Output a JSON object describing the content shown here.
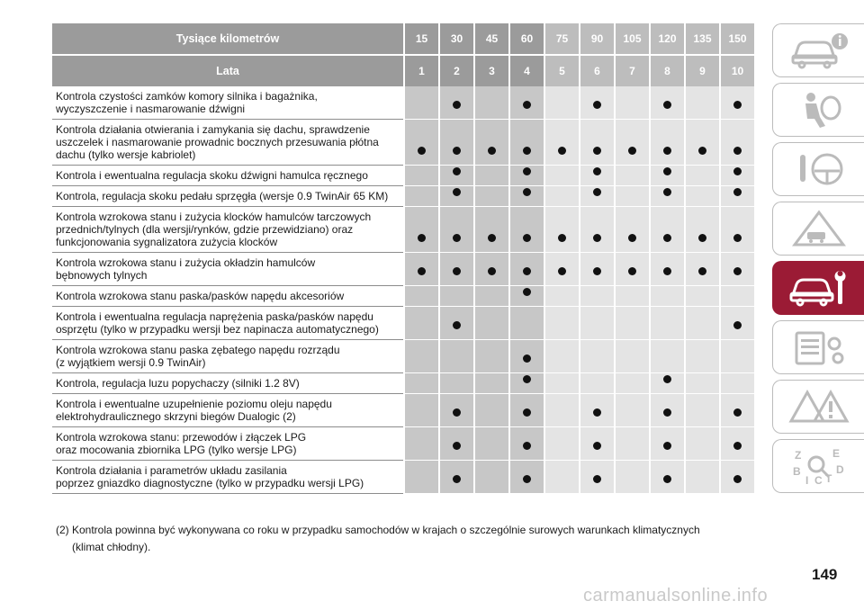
{
  "header": {
    "km_label": "Tysiące kilometrów",
    "years_label": "Lata",
    "km": [
      "15",
      "30",
      "45",
      "60",
      "75",
      "90",
      "105",
      "120",
      "135",
      "150"
    ],
    "years": [
      "1",
      "2",
      "3",
      "4",
      "5",
      "6",
      "7",
      "8",
      "9",
      "10"
    ]
  },
  "rows": [
    {
      "text": "Kontrola czystości zamków komory silnika i bagażnika,\nwyczyszczenie i nasmarowanie dźwigni",
      "marks": [
        0,
        1,
        0,
        1,
        0,
        1,
        0,
        1,
        0,
        1
      ]
    },
    {
      "text": "Kontrola działania otwierania i zamykania się dachu, sprawdzenie\nuszczelek i nasmarowanie prowadnic bocznych przesuwania płótna\ndachu (tylko wersje kabriolet)",
      "marks": [
        1,
        1,
        1,
        1,
        1,
        1,
        1,
        1,
        1,
        1
      ]
    },
    {
      "text": "Kontrola i ewentualna regulacja skoku dźwigni hamulca ręcznego",
      "marks": [
        0,
        1,
        0,
        1,
        0,
        1,
        0,
        1,
        0,
        1
      ]
    },
    {
      "text": "Kontrola, regulacja skoku pedału sprzęgła (wersje 0.9 TwinAir 65 KM)",
      "marks": [
        0,
        1,
        0,
        1,
        0,
        1,
        0,
        1,
        0,
        1
      ]
    },
    {
      "text": "Kontrola wzrokowa stanu i zużycia klocków hamulców tarczowych\nprzednich/tylnych (dla wersji/rynków, gdzie przewidziano) oraz\nfunkcjonowania sygnalizatora zużycia klocków",
      "marks": [
        1,
        1,
        1,
        1,
        1,
        1,
        1,
        1,
        1,
        1
      ]
    },
    {
      "text": "Kontrola wzrokowa stanu i zużycia okładzin hamulców\nbębnowych tylnych",
      "marks": [
        1,
        1,
        1,
        1,
        1,
        1,
        1,
        1,
        1,
        1
      ]
    },
    {
      "text": "Kontrola wzrokowa stanu paska/pasków napędu akcesoriów",
      "marks": [
        0,
        0,
        0,
        1,
        0,
        0,
        0,
        0,
        0,
        0
      ]
    },
    {
      "text": "Kontrola i ewentualna regulacja naprężenia paska/pasków napędu\nosprzętu (tylko w przypadku wersji bez napinacza automatycznego)",
      "marks": [
        0,
        1,
        0,
        0,
        0,
        0,
        0,
        0,
        0,
        1
      ]
    },
    {
      "text": "Kontrola wzrokowa stanu paska zębatego napędu rozrządu\n(z wyjątkiem wersji 0.9 TwinAir)",
      "marks": [
        0,
        0,
        0,
        1,
        0,
        0,
        0,
        0,
        0,
        0
      ]
    },
    {
      "text": "Kontrola, regulacja luzu popychaczy (silniki 1.2 8V)",
      "marks": [
        0,
        0,
        0,
        1,
        0,
        0,
        0,
        1,
        0,
        0
      ]
    },
    {
      "text": "Kontrola i ewentualne uzupełnienie poziomu oleju napędu\nelektrohydraulicznego skrzyni biegów Dualogic (2)",
      "marks": [
        0,
        1,
        0,
        1,
        0,
        1,
        0,
        1,
        0,
        1
      ]
    },
    {
      "text": "Kontrola wzrokowa stanu: przewodów i złączek LPG\noraz mocowania zbiornika LPG (tylko wersje LPG)",
      "marks": [
        0,
        1,
        0,
        1,
        0,
        1,
        0,
        1,
        0,
        1
      ]
    },
    {
      "text": "Kontrola działania i parametrów układu zasilania\npoprzez gniazdko diagnostyczne (tylko w przypadku wersji LPG)",
      "marks": [
        0,
        1,
        0,
        1,
        0,
        1,
        0,
        1,
        0,
        1
      ]
    }
  ],
  "footnote": {
    "line1": "(2) Kontrola powinna być wykonywana co roku w przypadku samochodów w krajach o szczególnie surowych warunkach klimatycznych",
    "line2": "(klimat chłodny)."
  },
  "sidebar": {
    "tabs": [
      "car-info-icon",
      "airbag-icon",
      "steering-wheel-icon",
      "warning-triangle-icon",
      "car-wrench-icon",
      "settings-list-icon",
      "hazard-icon",
      "alphabet-index-icon"
    ],
    "active_index": 4,
    "accent_color": "#9b1b35"
  },
  "page_number": "149",
  "watermark": "carmanualsonline.info"
}
